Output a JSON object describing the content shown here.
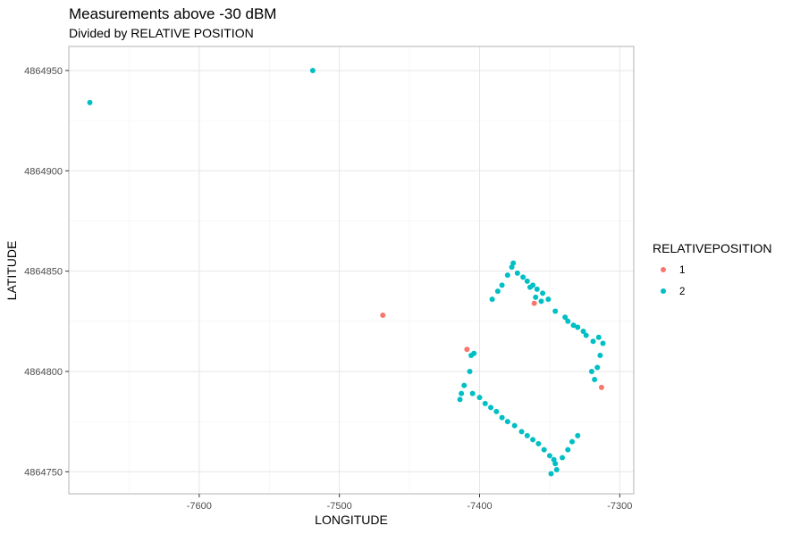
{
  "chart_data": {
    "type": "scatter",
    "title": "Measurements above -30 dBM",
    "subtitle": "Divided by RELATIVE POSITION",
    "xlabel": "LONGITUDE",
    "ylabel": "LATITUDE",
    "xlim": [
      -7693,
      -7290
    ],
    "ylim": [
      4864739,
      4864962
    ],
    "x_ticks": [
      -7600,
      -7500,
      -7400,
      -7300
    ],
    "y_ticks": [
      4864750,
      4864800,
      4864850,
      4864900,
      4864950
    ],
    "x_tick_labels": [
      "-7600",
      "-7500",
      "-7400",
      "-7300"
    ],
    "y_tick_labels": [
      "4864750",
      "4864800",
      "4864850",
      "4864900",
      "4864950"
    ],
    "grid": true,
    "legend": {
      "title": "RELATIVEPOSITION",
      "position": "right"
    },
    "series": [
      {
        "name": "1",
        "color": "#F8766D",
        "points": [
          [
            -7469,
            4864828
          ],
          [
            -7409,
            4864811
          ],
          [
            -7361,
            4864834
          ],
          [
            -7313,
            4864792
          ]
        ]
      },
      {
        "name": "2",
        "color": "#00BFC4",
        "points": [
          [
            -7678,
            4864934
          ],
          [
            -7519,
            4864950
          ],
          [
            -7391,
            4864836
          ],
          [
            -7387,
            4864840
          ],
          [
            -7384,
            4864843
          ],
          [
            -7380,
            4864848
          ],
          [
            -7377,
            4864852
          ],
          [
            -7376,
            4864854
          ],
          [
            -7373,
            4864849
          ],
          [
            -7369,
            4864847
          ],
          [
            -7366,
            4864845
          ],
          [
            -7362,
            4864843
          ],
          [
            -7359,
            4864841
          ],
          [
            -7355,
            4864839
          ],
          [
            -7351,
            4864836
          ],
          [
            -7364,
            4864842
          ],
          [
            -7360,
            4864837
          ],
          [
            -7356,
            4864835
          ],
          [
            -7346,
            4864830
          ],
          [
            -7339,
            4864827
          ],
          [
            -7333,
            4864823
          ],
          [
            -7326,
            4864820
          ],
          [
            -7337,
            4864825
          ],
          [
            -7330,
            4864822
          ],
          [
            -7324,
            4864818
          ],
          [
            -7319,
            4864815
          ],
          [
            -7315,
            4864817
          ],
          [
            -7312,
            4864814
          ],
          [
            -7314,
            4864808
          ],
          [
            -7316,
            4864802
          ],
          [
            -7318,
            4864796
          ],
          [
            -7320,
            4864800
          ],
          [
            -7406,
            4864808
          ],
          [
            -7404,
            4864809
          ],
          [
            -7407,
            4864800
          ],
          [
            -7411,
            4864793
          ],
          [
            -7413,
            4864789
          ],
          [
            -7414,
            4864786
          ],
          [
            -7405,
            4864789
          ],
          [
            -7400,
            4864787
          ],
          [
            -7396,
            4864784
          ],
          [
            -7392,
            4864782
          ],
          [
            -7388,
            4864780
          ],
          [
            -7384,
            4864777
          ],
          [
            -7380,
            4864775
          ],
          [
            -7375,
            4864773
          ],
          [
            -7370,
            4864770
          ],
          [
            -7366,
            4864768
          ],
          [
            -7362,
            4864766
          ],
          [
            -7358,
            4864764
          ],
          [
            -7354,
            4864761
          ],
          [
            -7350,
            4864758
          ],
          [
            -7347,
            4864756
          ],
          [
            -7349,
            4864749
          ],
          [
            -7345,
            4864751
          ],
          [
            -7341,
            4864757
          ],
          [
            -7337,
            4864761
          ],
          [
            -7334,
            4864765
          ],
          [
            -7330,
            4864768
          ],
          [
            -7346,
            4864754
          ]
        ]
      }
    ]
  }
}
